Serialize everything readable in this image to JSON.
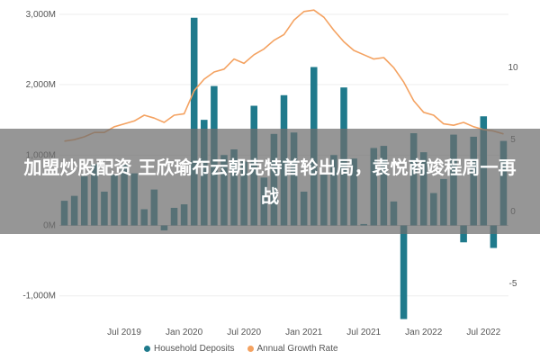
{
  "chart_data": {
    "type": "bar",
    "y_left_ticks": [
      "3,000M",
      "2,000M",
      "1,000M",
      "0M",
      "-1,000M"
    ],
    "y_left_tick_values": [
      3000,
      2000,
      1000,
      0,
      -1000
    ],
    "y_right_ticks": [
      "10",
      "5",
      "0",
      "-5"
    ],
    "y_right_tick_values": [
      10,
      5,
      0,
      -5
    ],
    "x_ticks": [
      "Jul 2019",
      "Jan 2020",
      "Jul 2020",
      "Jan 2021",
      "Jul 2021",
      "Jan 2022",
      "Jul 2022"
    ],
    "x_tick_months": [
      6,
      12,
      18,
      24,
      30,
      36,
      42
    ],
    "ylim_left": [
      -1400,
      3100
    ],
    "ylim_right": [
      -7.8,
      14.2
    ],
    "series": [
      {
        "name": "Household Deposits",
        "type": "bar",
        "color": "#1f7a8c",
        "values": [
          350,
          420,
          700,
          870,
          480,
          720,
          860,
          740,
          230,
          510,
          -70,
          250,
          300,
          2950,
          1500,
          1980,
          1000,
          1080,
          910,
          1700,
          680,
          1300,
          1850,
          1320,
          480,
          2250,
          720,
          1000,
          1960,
          950,
          20,
          1100,
          1130,
          340,
          -1330,
          1310,
          1040,
          460,
          660,
          1290,
          -240,
          1260,
          1550,
          -320,
          1200
        ]
      },
      {
        "name": "Annual Growth Rate",
        "type": "line",
        "color": "#f4a261",
        "values": [
          4.9,
          5.0,
          5.2,
          5.5,
          5.5,
          5.9,
          6.1,
          6.3,
          6.7,
          6.5,
          6.2,
          6.7,
          6.8,
          8.4,
          9.2,
          9.7,
          9.9,
          10.6,
          10.3,
          10.9,
          11.3,
          11.9,
          12.3,
          13.3,
          13.9,
          14.0,
          13.5,
          12.6,
          11.8,
          11.2,
          10.9,
          10.6,
          10.7,
          10.0,
          9.0,
          7.7,
          6.9,
          6.7,
          6.1,
          6.0,
          6.2,
          5.9,
          5.7,
          5.6,
          5.4
        ]
      }
    ]
  },
  "overlay": {
    "headline": "加盟炒股配资 王欣瑜布云朝克特首轮出局，袁悦商竣程周一再战"
  },
  "legend": [
    {
      "label": "Household Deposits",
      "color": "#1f7a8c"
    },
    {
      "label": "Annual Growth Rate",
      "color": "#f4a261"
    }
  ]
}
